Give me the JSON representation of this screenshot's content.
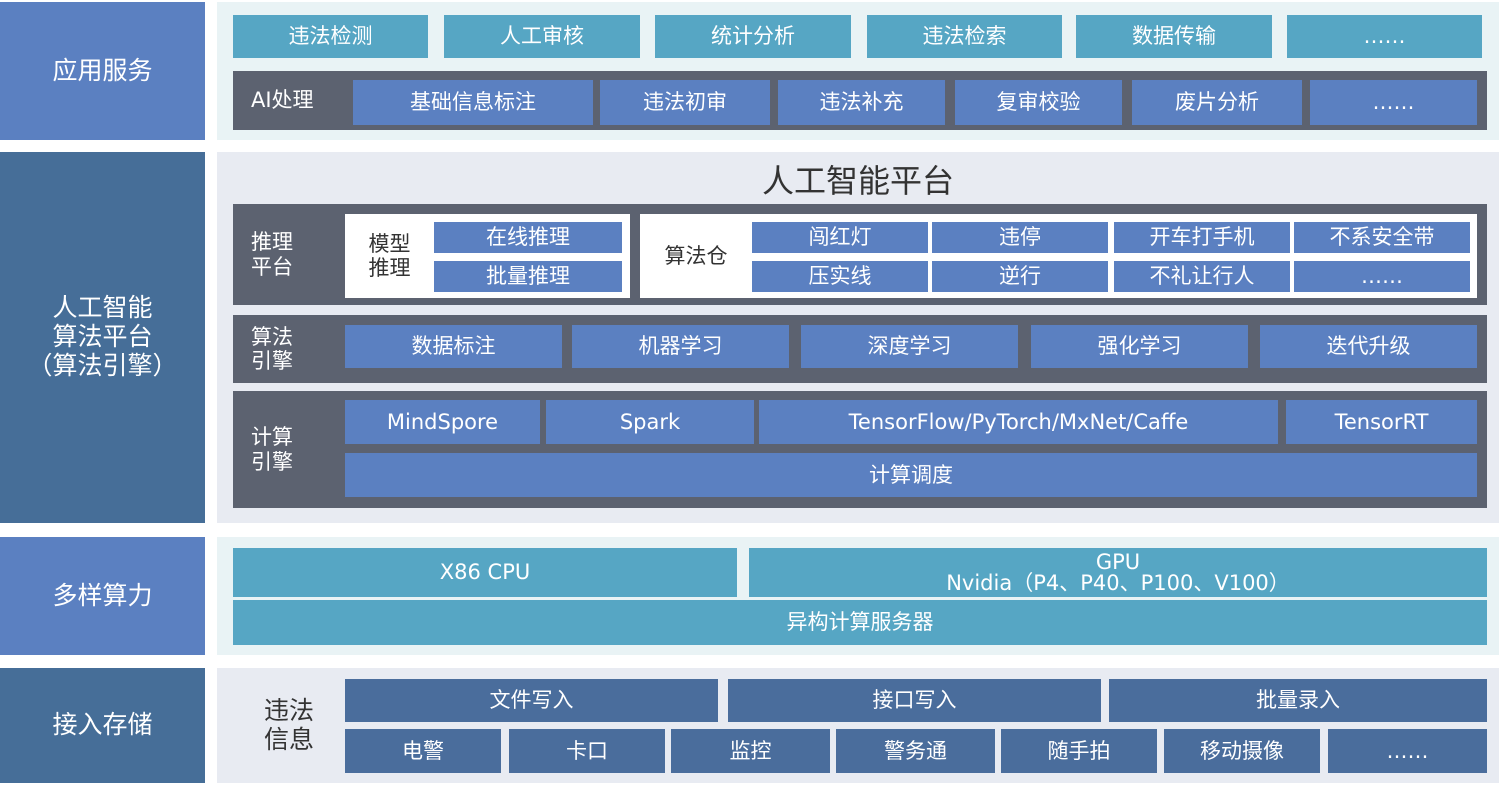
{
  "layers": {
    "app": {
      "label": "应用服务",
      "items": [
        "违法检测",
        "人工审核",
        "统计分析",
        "违法检索",
        "数据传输",
        "……"
      ],
      "ai": {
        "label": "AI处理",
        "items": [
          "基础信息标注",
          "违法初审",
          "违法补充",
          "复审校验",
          "废片分析",
          "……"
        ]
      }
    },
    "ai_platform": {
      "label": "人工智能\n算法平台\n（算法引擎）",
      "title": "人工智能平台",
      "inference": {
        "label": "推理\n平台",
        "model_label": "模型\n推理",
        "model_items": [
          "在线推理",
          "批量推理"
        ],
        "repo_label": "算法仓",
        "repo_items": [
          "闯红灯",
          "违停",
          "开车打手机",
          "不系安全带",
          "压实线",
          "逆行",
          "不礼让行人",
          "……"
        ]
      },
      "algo_engine": {
        "label": "算法\n引擎",
        "items": [
          "数据标注",
          "机器学习",
          "深度学习",
          "强化学习",
          "迭代升级"
        ]
      },
      "compute_engine": {
        "label": "计算\n引擎",
        "items": [
          "MindSpore",
          "Spark",
          "TensorFlow/PyTorch/MxNet/Caffe",
          "TensorRT"
        ],
        "scheduler": "计算调度"
      }
    },
    "compute": {
      "label": "多样算力",
      "cpu": "X86 CPU",
      "gpu": "GPU\nNvidia（P4、P40、P100、V100）",
      "server": "异构计算服务器"
    },
    "storage": {
      "label": "接入存储",
      "info_label": "违法\n信息",
      "write_items": [
        "文件写入",
        "接口写入",
        "批量录入"
      ],
      "sources": [
        "电警",
        "卡口",
        "监控",
        "警务通",
        "随手拍",
        "移动摄像",
        "……"
      ]
    }
  },
  "colors": {
    "teal": "#56a6c4",
    "blue": "#5b80c1",
    "navy": "#4a6d9c",
    "dark": "#5c6270",
    "side_dark": "#466e98"
  }
}
